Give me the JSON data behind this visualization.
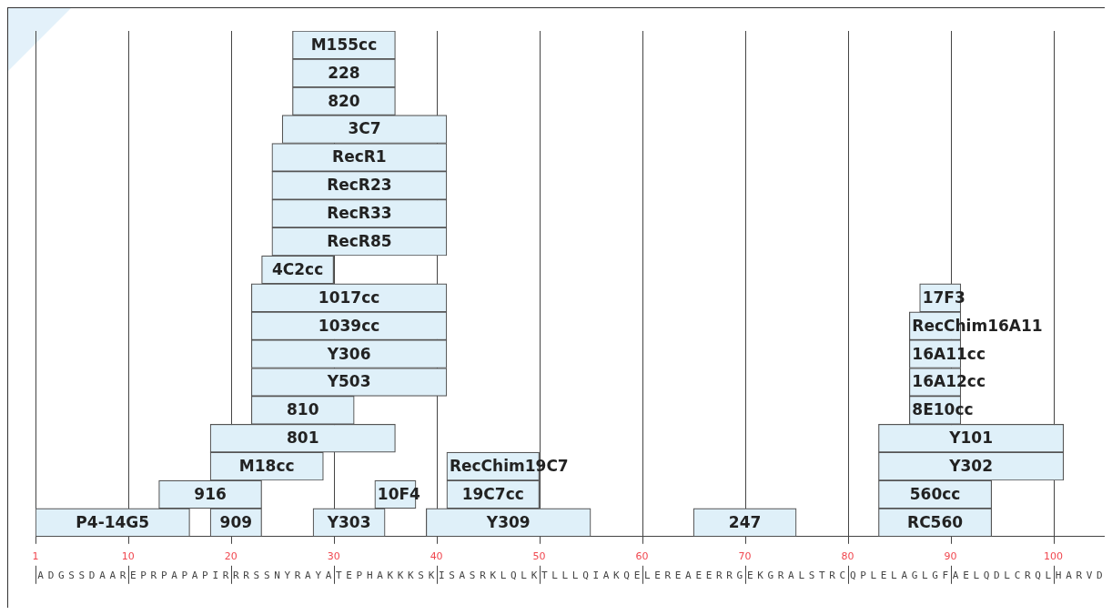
{
  "chart_data": {
    "type": "bar",
    "orientation": "horizontal",
    "categories": [
      null,
      null,
      null,
      null,
      null,
      null,
      null,
      null,
      null,
      null,
      null,
      null,
      null,
      null,
      null,
      null,
      null,
      null
    ],
    "series": [
      {
        "name": "M155cc",
        "color": "#dff0f9",
        "base": [
          26,
          null,
          null,
          null,
          null,
          null,
          null,
          null,
          null,
          null,
          null,
          null,
          null,
          null,
          null,
          null,
          null,
          null
        ],
        "values": [
          10,
          null,
          null,
          null,
          null,
          null,
          null,
          null,
          null,
          null,
          null,
          null,
          null,
          null,
          null,
          null,
          null,
          null
        ]
      },
      {
        "name": "228",
        "color": "#dff0f9",
        "base": [
          null,
          26,
          null,
          null,
          null,
          null,
          null,
          null,
          null,
          null,
          null,
          null,
          null,
          null,
          null,
          null,
          null,
          null
        ],
        "values": [
          null,
          10,
          null,
          null,
          null,
          null,
          null,
          null,
          null,
          null,
          null,
          null,
          null,
          null,
          null,
          null,
          null,
          null
        ]
      },
      {
        "name": "820",
        "color": "#dff0f9",
        "base": [
          null,
          null,
          26,
          null,
          null,
          null,
          null,
          null,
          null,
          null,
          null,
          null,
          null,
          null,
          null,
          null,
          null,
          null
        ],
        "values": [
          null,
          null,
          10,
          null,
          null,
          null,
          null,
          null,
          null,
          null,
          null,
          null,
          null,
          null,
          null,
          null,
          null,
          null
        ]
      },
      {
        "name": "3C7",
        "color": "#dff0f9",
        "base": [
          null,
          null,
          null,
          25,
          null,
          null,
          null,
          null,
          null,
          null,
          null,
          null,
          null,
          null,
          null,
          null,
          null,
          null
        ],
        "values": [
          null,
          null,
          null,
          16,
          null,
          null,
          null,
          null,
          null,
          null,
          null,
          null,
          null,
          null,
          null,
          null,
          null,
          null
        ]
      },
      {
        "name": "RecR1",
        "color": "#dff0f9",
        "base": [
          null,
          null,
          null,
          null,
          24,
          null,
          null,
          null,
          null,
          null,
          null,
          null,
          null,
          null,
          null,
          null,
          null,
          null
        ],
        "values": [
          null,
          null,
          null,
          null,
          17,
          null,
          null,
          null,
          null,
          null,
          null,
          null,
          null,
          null,
          null,
          null,
          null,
          null
        ]
      },
      {
        "name": "RecR23",
        "color": "#dff0f9",
        "base": [
          null,
          null,
          null,
          null,
          null,
          24,
          null,
          null,
          null,
          null,
          null,
          null,
          null,
          null,
          null,
          null,
          null,
          null
        ],
        "values": [
          null,
          null,
          null,
          null,
          null,
          17,
          null,
          null,
          null,
          null,
          null,
          null,
          null,
          null,
          null,
          null,
          null,
          null
        ]
      },
      {
        "name": "RecR33",
        "color": "#dff0f9",
        "base": [
          null,
          null,
          null,
          null,
          null,
          null,
          24,
          null,
          null,
          null,
          null,
          null,
          null,
          null,
          null,
          null,
          null,
          null
        ],
        "values": [
          null,
          null,
          null,
          null,
          null,
          null,
          17,
          null,
          null,
          null,
          null,
          null,
          null,
          null,
          null,
          null,
          null,
          null
        ]
      },
      {
        "name": "RecR85",
        "color": "#dff0f9",
        "base": [
          null,
          null,
          null,
          null,
          null,
          null,
          null,
          24,
          null,
          null,
          null,
          null,
          null,
          null,
          null,
          null,
          null,
          null
        ],
        "values": [
          null,
          null,
          null,
          null,
          null,
          null,
          null,
          17,
          null,
          null,
          null,
          null,
          null,
          null,
          null,
          null,
          null,
          null
        ]
      },
      {
        "name": "4C2cc",
        "color": "#dff0f9",
        "base": [
          null,
          null,
          null,
          null,
          null,
          null,
          null,
          null,
          23,
          null,
          null,
          null,
          null,
          null,
          null,
          null,
          null,
          null
        ],
        "values": [
          null,
          null,
          null,
          null,
          null,
          null,
          null,
          null,
          7,
          null,
          null,
          null,
          null,
          null,
          null,
          null,
          null,
          null
        ]
      },
      {
        "name": "1017cc",
        "color": "#dff0f9",
        "base": [
          null,
          null,
          null,
          null,
          null,
          null,
          null,
          null,
          null,
          22,
          null,
          null,
          null,
          null,
          null,
          null,
          null,
          null
        ],
        "values": [
          null,
          null,
          null,
          null,
          null,
          null,
          null,
          null,
          null,
          19,
          null,
          null,
          null,
          null,
          null,
          null,
          null,
          null
        ]
      },
      {
        "name": "17F3",
        "color": "#dff0f9",
        "base": [
          null,
          null,
          null,
          null,
          null,
          null,
          null,
          null,
          null,
          87,
          null,
          null,
          null,
          null,
          null,
          null,
          null,
          null
        ],
        "values": [
          null,
          null,
          null,
          null,
          null,
          null,
          null,
          null,
          null,
          4,
          null,
          null,
          null,
          null,
          null,
          null,
          null,
          null
        ]
      },
      {
        "name": "1039cc",
        "color": "#dff0f9",
        "base": [
          null,
          null,
          null,
          null,
          null,
          null,
          null,
          null,
          null,
          null,
          22,
          null,
          null,
          null,
          null,
          null,
          null,
          null
        ],
        "values": [
          null,
          null,
          null,
          null,
          null,
          null,
          null,
          null,
          null,
          null,
          19,
          null,
          null,
          null,
          null,
          null,
          null,
          null
        ]
      },
      {
        "name": "RecChim16A11",
        "color": "#dff0f9",
        "base": [
          null,
          null,
          null,
          null,
          null,
          null,
          null,
          null,
          null,
          null,
          86,
          null,
          null,
          null,
          null,
          null,
          null,
          null
        ],
        "values": [
          null,
          null,
          null,
          null,
          null,
          null,
          null,
          null,
          null,
          null,
          5,
          null,
          null,
          null,
          null,
          null,
          null,
          null
        ]
      },
      {
        "name": "Y306",
        "color": "#dff0f9",
        "base": [
          null,
          null,
          null,
          null,
          null,
          null,
          null,
          null,
          null,
          null,
          null,
          22,
          null,
          null,
          null,
          null,
          null,
          null
        ],
        "values": [
          null,
          null,
          null,
          null,
          null,
          null,
          null,
          null,
          null,
          null,
          null,
          19,
          null,
          null,
          null,
          null,
          null,
          null
        ]
      },
      {
        "name": "16A11cc",
        "color": "#dff0f9",
        "base": [
          null,
          null,
          null,
          null,
          null,
          null,
          null,
          null,
          null,
          null,
          null,
          86,
          null,
          null,
          null,
          null,
          null,
          null
        ],
        "values": [
          null,
          null,
          null,
          null,
          null,
          null,
          null,
          null,
          null,
          null,
          null,
          5,
          null,
          null,
          null,
          null,
          null,
          null
        ]
      },
      {
        "name": "Y503",
        "color": "#dff0f9",
        "base": [
          null,
          null,
          null,
          null,
          null,
          null,
          null,
          null,
          null,
          null,
          null,
          null,
          22,
          null,
          null,
          null,
          null,
          null
        ],
        "values": [
          null,
          null,
          null,
          null,
          null,
          null,
          null,
          null,
          null,
          null,
          null,
          null,
          19,
          null,
          null,
          null,
          null,
          null
        ]
      },
      {
        "name": "16A12cc",
        "color": "#dff0f9",
        "base": [
          null,
          null,
          null,
          null,
          null,
          null,
          null,
          null,
          null,
          null,
          null,
          null,
          86,
          null,
          null,
          null,
          null,
          null
        ],
        "values": [
          null,
          null,
          null,
          null,
          null,
          null,
          null,
          null,
          null,
          null,
          null,
          null,
          5,
          null,
          null,
          null,
          null,
          null
        ]
      },
      {
        "name": "810",
        "color": "#dff0f9",
        "base": [
          null,
          null,
          null,
          null,
          null,
          null,
          null,
          null,
          null,
          null,
          null,
          null,
          null,
          22,
          null,
          null,
          null,
          null
        ],
        "values": [
          null,
          null,
          null,
          null,
          null,
          null,
          null,
          null,
          null,
          null,
          null,
          null,
          null,
          10,
          null,
          null,
          null,
          null
        ]
      },
      {
        "name": "8E10cc",
        "color": "#dff0f9",
        "base": [
          null,
          null,
          null,
          null,
          null,
          null,
          null,
          null,
          null,
          null,
          null,
          null,
          null,
          86,
          null,
          null,
          null,
          null
        ],
        "values": [
          null,
          null,
          null,
          null,
          null,
          null,
          null,
          null,
          null,
          null,
          null,
          null,
          null,
          5,
          null,
          null,
          null,
          null
        ]
      },
      {
        "name": "801",
        "color": "#dff0f9",
        "base": [
          null,
          null,
          null,
          null,
          null,
          null,
          null,
          null,
          null,
          null,
          null,
          null,
          null,
          null,
          18,
          null,
          null,
          null
        ],
        "values": [
          null,
          null,
          null,
          null,
          null,
          null,
          null,
          null,
          null,
          null,
          null,
          null,
          null,
          null,
          18,
          null,
          null,
          null
        ]
      },
      {
        "name": "Y101",
        "color": "#dff0f9",
        "base": [
          null,
          null,
          null,
          null,
          null,
          null,
          null,
          null,
          null,
          null,
          null,
          null,
          null,
          null,
          83,
          null,
          null,
          null
        ],
        "values": [
          null,
          null,
          null,
          null,
          null,
          null,
          null,
          null,
          null,
          null,
          null,
          null,
          null,
          null,
          18,
          null,
          null,
          null
        ]
      },
      {
        "name": "M18cc",
        "color": "#dff0f9",
        "base": [
          null,
          null,
          null,
          null,
          null,
          null,
          null,
          null,
          null,
          null,
          null,
          null,
          null,
          null,
          null,
          18,
          null,
          null
        ],
        "values": [
          null,
          null,
          null,
          null,
          null,
          null,
          null,
          null,
          null,
          null,
          null,
          null,
          null,
          null,
          null,
          11,
          null,
          null
        ]
      },
      {
        "name": "RecChim19C7",
        "color": "#dff0f9",
        "base": [
          null,
          null,
          null,
          null,
          null,
          null,
          null,
          null,
          null,
          null,
          null,
          null,
          null,
          null,
          null,
          41,
          null,
          null
        ],
        "values": [
          null,
          null,
          null,
          null,
          null,
          null,
          null,
          null,
          null,
          null,
          null,
          null,
          null,
          null,
          null,
          9,
          null,
          null
        ]
      },
      {
        "name": "Y302",
        "color": "#dff0f9",
        "base": [
          null,
          null,
          null,
          null,
          null,
          null,
          null,
          null,
          null,
          null,
          null,
          null,
          null,
          null,
          null,
          83,
          null,
          null
        ],
        "values": [
          null,
          null,
          null,
          null,
          null,
          null,
          null,
          null,
          null,
          null,
          null,
          null,
          null,
          null,
          null,
          18,
          null,
          null
        ]
      },
      {
        "name": "916",
        "color": "#dff0f9",
        "base": [
          null,
          null,
          null,
          null,
          null,
          null,
          null,
          null,
          null,
          null,
          null,
          null,
          null,
          null,
          null,
          null,
          13,
          null
        ],
        "values": [
          null,
          null,
          null,
          null,
          null,
          null,
          null,
          null,
          null,
          null,
          null,
          null,
          null,
          null,
          null,
          null,
          10,
          null
        ]
      },
      {
        "name": "10F4",
        "color": "#dff0f9",
        "base": [
          null,
          null,
          null,
          null,
          null,
          null,
          null,
          null,
          null,
          null,
          null,
          null,
          null,
          null,
          null,
          null,
          34,
          null
        ],
        "values": [
          null,
          null,
          null,
          null,
          null,
          null,
          null,
          null,
          null,
          null,
          null,
          null,
          null,
          null,
          null,
          null,
          4,
          null
        ]
      },
      {
        "name": "19C7cc",
        "color": "#dff0f9",
        "base": [
          null,
          null,
          null,
          null,
          null,
          null,
          null,
          null,
          null,
          null,
          null,
          null,
          null,
          null,
          null,
          null,
          41,
          null
        ],
        "values": [
          null,
          null,
          null,
          null,
          null,
          null,
          null,
          null,
          null,
          null,
          null,
          null,
          null,
          null,
          null,
          null,
          9,
          null
        ]
      },
      {
        "name": "560cc",
        "color": "#dff0f9",
        "base": [
          null,
          null,
          null,
          null,
          null,
          null,
          null,
          null,
          null,
          null,
          null,
          null,
          null,
          null,
          null,
          null,
          83,
          null
        ],
        "values": [
          null,
          null,
          null,
          null,
          null,
          null,
          null,
          null,
          null,
          null,
          null,
          null,
          null,
          null,
          null,
          null,
          11,
          null
        ]
      },
      {
        "name": "P4-14G5",
        "color": "#dff0f9",
        "base": [
          null,
          null,
          null,
          null,
          null,
          null,
          null,
          null,
          null,
          null,
          null,
          null,
          null,
          null,
          null,
          null,
          null,
          1
        ],
        "values": [
          null,
          null,
          null,
          null,
          null,
          null,
          null,
          null,
          null,
          null,
          null,
          null,
          null,
          null,
          null,
          null,
          null,
          15
        ]
      },
      {
        "name": "909",
        "color": "#dff0f9",
        "base": [
          null,
          null,
          null,
          null,
          null,
          null,
          null,
          null,
          null,
          null,
          null,
          null,
          null,
          null,
          null,
          null,
          null,
          18
        ],
        "values": [
          null,
          null,
          null,
          null,
          null,
          null,
          null,
          null,
          null,
          null,
          null,
          null,
          null,
          null,
          null,
          null,
          null,
          5
        ]
      },
      {
        "name": "Y303",
        "color": "#dff0f9",
        "base": [
          null,
          null,
          null,
          null,
          null,
          null,
          null,
          null,
          null,
          null,
          null,
          null,
          null,
          null,
          null,
          null,
          null,
          28
        ],
        "values": [
          null,
          null,
          null,
          null,
          null,
          null,
          null,
          null,
          null,
          null,
          null,
          null,
          null,
          null,
          null,
          null,
          null,
          7
        ]
      },
      {
        "name": "Y309",
        "color": "#dff0f9",
        "base": [
          null,
          null,
          null,
          null,
          null,
          null,
          null,
          null,
          null,
          null,
          null,
          null,
          null,
          null,
          null,
          null,
          null,
          39
        ],
        "values": [
          null,
          null,
          null,
          null,
          null,
          null,
          null,
          null,
          null,
          null,
          null,
          null,
          null,
          null,
          null,
          null,
          null,
          16
        ]
      },
      {
        "name": "247",
        "color": "#dff0f9",
        "base": [
          null,
          null,
          null,
          null,
          null,
          null,
          null,
          null,
          null,
          null,
          null,
          null,
          null,
          null,
          null,
          null,
          null,
          65
        ],
        "values": [
          null,
          null,
          null,
          null,
          null,
          null,
          null,
          null,
          null,
          null,
          null,
          null,
          null,
          null,
          null,
          null,
          null,
          10
        ]
      },
      {
        "name": "RC560",
        "color": "#dff0f9",
        "base": [
          null,
          null,
          null,
          null,
          null,
          null,
          null,
          null,
          null,
          null,
          null,
          null,
          null,
          null,
          null,
          null,
          null,
          83
        ],
        "values": [
          null,
          null,
          null,
          null,
          null,
          null,
          null,
          null,
          null,
          null,
          null,
          null,
          null,
          null,
          null,
          null,
          null,
          11
        ]
      }
    ],
    "xlim": [
      1,
      105
    ],
    "xticks": [
      1,
      10,
      20,
      30,
      40,
      50,
      60,
      70,
      80,
      90,
      100
    ],
    "grid": "x",
    "tick_labels": "x",
    "legend": false,
    "annotations": [
      "ADGSSDAAREPRPAPAPIRRRSSNYRAYATEPHAKKKSKISASRKLQLKTLLLQIAKQELEREAEERRGEKGRALSTRCQPLELAGLGFAELQDLCRQLHARVD"
    ]
  }
}
